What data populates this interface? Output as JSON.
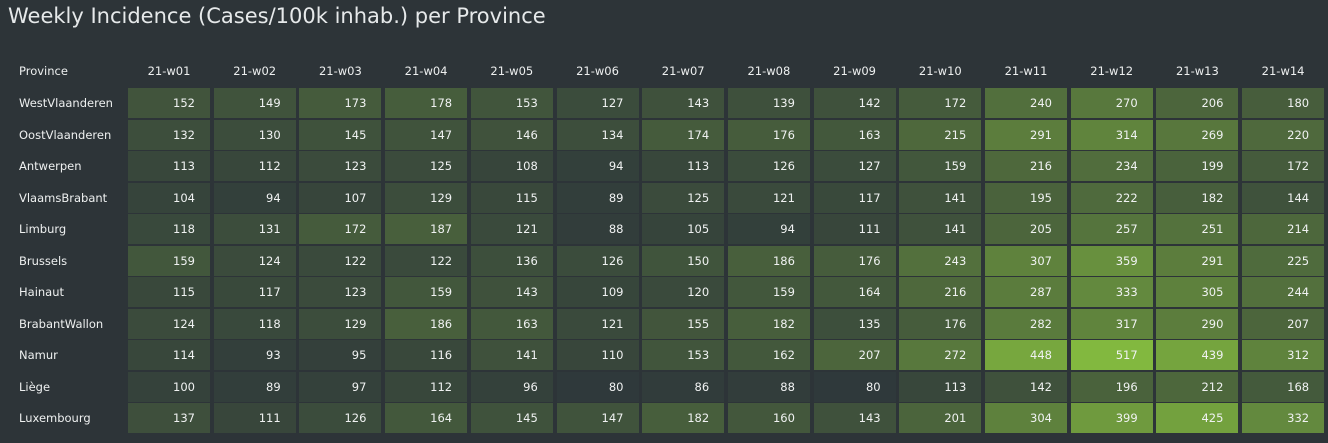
{
  "chart_data": {
    "type": "heatmap",
    "title": "Weekly Incidence (Cases/100k inhab.) per Province",
    "row_header": "Province",
    "columns": [
      "21-w01",
      "21-w02",
      "21-w03",
      "21-w04",
      "21-w05",
      "21-w06",
      "21-w07",
      "21-w08",
      "21-w09",
      "21-w10",
      "21-w11",
      "21-w12",
      "21-w13",
      "21-w14"
    ],
    "rows": [
      {
        "name": "WestVlaanderen",
        "values": [
          152,
          149,
          173,
          178,
          153,
          127,
          143,
          139,
          142,
          172,
          240,
          270,
          206,
          180
        ]
      },
      {
        "name": "OostVlaanderen",
        "values": [
          132,
          130,
          145,
          147,
          146,
          134,
          174,
          176,
          163,
          215,
          291,
          314,
          269,
          220
        ]
      },
      {
        "name": "Antwerpen",
        "values": [
          113,
          112,
          123,
          125,
          108,
          94,
          113,
          126,
          127,
          159,
          216,
          234,
          199,
          172
        ]
      },
      {
        "name": "VlaamsBrabant",
        "values": [
          104,
          94,
          107,
          129,
          115,
          89,
          125,
          121,
          117,
          141,
          195,
          222,
          182,
          144
        ]
      },
      {
        "name": "Limburg",
        "values": [
          118,
          131,
          172,
          187,
          121,
          88,
          105,
          94,
          111,
          141,
          205,
          257,
          251,
          214
        ]
      },
      {
        "name": "Brussels",
        "values": [
          159,
          124,
          122,
          122,
          136,
          126,
          150,
          186,
          176,
          243,
          307,
          359,
          291,
          225
        ]
      },
      {
        "name": "Hainaut",
        "values": [
          115,
          117,
          123,
          159,
          143,
          109,
          120,
          159,
          164,
          216,
          287,
          333,
          305,
          244
        ]
      },
      {
        "name": "BrabantWallon",
        "values": [
          124,
          118,
          129,
          186,
          163,
          121,
          155,
          182,
          135,
          176,
          282,
          317,
          290,
          207
        ]
      },
      {
        "name": "Namur",
        "values": [
          114,
          93,
          95,
          116,
          141,
          110,
          153,
          162,
          207,
          272,
          448,
          517,
          439,
          312
        ]
      },
      {
        "name": "Liège",
        "values": [
          100,
          89,
          97,
          112,
          96,
          80,
          86,
          88,
          80,
          113,
          142,
          196,
          212,
          168
        ]
      },
      {
        "name": "Luxembourg",
        "values": [
          137,
          111,
          126,
          164,
          145,
          147,
          182,
          160,
          143,
          201,
          304,
          399,
          425,
          332
        ]
      }
    ],
    "color_scale": {
      "low_color": "#2f393b",
      "high_color": "#82b83f"
    },
    "legend": "none"
  }
}
